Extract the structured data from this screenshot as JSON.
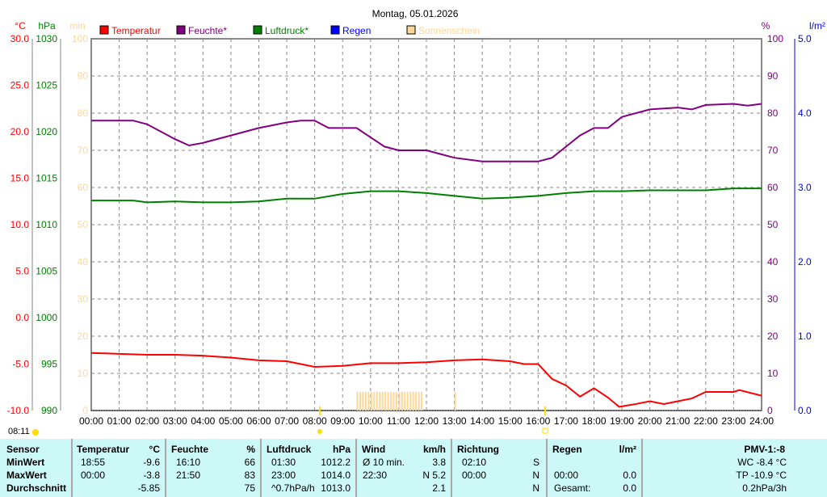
{
  "title": "Montag, 05.01.2026",
  "time_marker": "08:11",
  "chart_data": {
    "type": "line",
    "title": "Montag, 05.01.2026",
    "x_unit": "hours",
    "xticks": [
      "00:00",
      "01:00",
      "02:00",
      "03:00",
      "04:00",
      "05:00",
      "06:00",
      "07:00",
      "08:00",
      "09:00",
      "10:00",
      "11:00",
      "12:00",
      "13:00",
      "14:00",
      "15:00",
      "16:00",
      "17:00",
      "18:00",
      "19:00",
      "20:00",
      "21:00",
      "22:00",
      "23:00",
      "24:00"
    ],
    "axes": {
      "temp": {
        "label": "°C",
        "range": [
          -10,
          30
        ],
        "ticks": [
          "30.0",
          "25.0",
          "20.0",
          "15.0",
          "10.0",
          "5.0",
          "0.0",
          "-5.0",
          "-10.0"
        ],
        "color": "#ff0000"
      },
      "pressure": {
        "label": "hPa",
        "range": [
          990,
          1030
        ],
        "ticks": [
          "1030",
          "1025",
          "1020",
          "1015",
          "1010",
          "1005",
          "1000",
          "995",
          "990"
        ],
        "color": "#008000"
      },
      "sun": {
        "label": "min",
        "range": [
          0,
          100
        ],
        "ticks": [
          "100",
          "90",
          "80",
          "70",
          "60",
          "50",
          "40",
          "30",
          "20",
          "10",
          "0"
        ],
        "color": "#ffd898"
      },
      "humidity": {
        "label": "%",
        "range": [
          0,
          100
        ],
        "ticks": [
          "100",
          "90",
          "80",
          "70",
          "60",
          "50",
          "40",
          "30",
          "20",
          "10",
          "0"
        ],
        "color": "#800080"
      },
      "rain": {
        "label": "l/m²",
        "range": [
          0,
          5
        ],
        "ticks": [
          "5.0",
          "4.0",
          "3.0",
          "2.0",
          "1.0",
          "0.0"
        ],
        "color": "#0000ff"
      }
    },
    "legend": [
      {
        "name": "Temperatur",
        "color": "#ff0000"
      },
      {
        "name": "Feuchte*",
        "color": "#800080"
      },
      {
        "name": "Luftdruck*",
        "color": "#008000"
      },
      {
        "name": "Regen",
        "color": "#0000ff"
      },
      {
        "name": "Sonnenschein",
        "color": "#ffd898"
      }
    ],
    "series": [
      {
        "name": "Temperatur",
        "axis": "temp",
        "color": "#ff0000",
        "x": [
          0,
          1,
          2,
          3,
          4,
          5,
          6,
          7,
          7.5,
          8,
          9,
          10,
          11,
          12,
          13,
          14,
          15,
          15.5,
          16,
          16.5,
          17,
          17.5,
          18,
          18.5,
          18.9,
          19.5,
          20,
          20.5,
          21,
          21.5,
          22,
          23,
          23.2,
          24
        ],
        "y": [
          -3.8,
          -3.9,
          -4.0,
          -4.0,
          -4.1,
          -4.3,
          -4.6,
          -4.7,
          -5.0,
          -5.3,
          -5.2,
          -4.9,
          -4.9,
          -4.8,
          -4.6,
          -4.5,
          -4.7,
          -5.0,
          -5.0,
          -6.6,
          -7.3,
          -8.5,
          -7.6,
          -8.6,
          -9.6,
          -9.3,
          -9.0,
          -9.3,
          -9.0,
          -8.7,
          -8.0,
          -8.0,
          -7.8,
          -8.4
        ]
      },
      {
        "name": "Feuchte*",
        "axis": "humidity",
        "color": "#800080",
        "x": [
          0,
          1.5,
          2,
          2.5,
          3,
          3.5,
          4,
          5,
          6,
          7,
          7.5,
          8,
          8.5,
          9,
          9.5,
          10,
          10.5,
          11,
          12,
          12.5,
          13,
          14,
          15,
          16,
          16.5,
          17,
          17.5,
          18,
          18.5,
          19,
          20,
          21,
          21.5,
          22,
          23,
          23.5,
          24
        ],
        "y": [
          78,
          78,
          77,
          75,
          73,
          71.3,
          72,
          74,
          76,
          77.5,
          78,
          78,
          76,
          76,
          76,
          73.5,
          71,
          70,
          70,
          69,
          68,
          67,
          67,
          67,
          68,
          71,
          74,
          76,
          76,
          79,
          81,
          81.5,
          81,
          82.2,
          82.5,
          82,
          82.5
        ]
      },
      {
        "name": "Luftdruck*",
        "axis": "pressure",
        "color": "#008000",
        "x": [
          0,
          1.5,
          2,
          3,
          4,
          5,
          6,
          7,
          8,
          9,
          10,
          11,
          12,
          13,
          14,
          15,
          16,
          17,
          18,
          19,
          20,
          21,
          22,
          23,
          24
        ],
        "y": [
          1012.6,
          1012.6,
          1012.4,
          1012.5,
          1012.4,
          1012.4,
          1012.5,
          1012.8,
          1012.8,
          1013.3,
          1013.6,
          1013.6,
          1013.4,
          1013.1,
          1012.8,
          1012.9,
          1013.1,
          1013.4,
          1013.6,
          1013.6,
          1013.7,
          1013.7,
          1013.7,
          1013.9,
          1013.9
        ]
      },
      {
        "name": "Sonnenschein",
        "axis": "sun",
        "color": "#ffd898",
        "type": "bar",
        "x": [
          9.5,
          9.6,
          9.7,
          9.8,
          9.9,
          10.0,
          10.1,
          10.2,
          10.3,
          10.4,
          10.5,
          10.6,
          10.7,
          10.8,
          10.9,
          11.0,
          11.1,
          11.2,
          11.3,
          11.4,
          11.5,
          11.6,
          11.7,
          11.8,
          13.0
        ],
        "y": [
          5,
          5,
          5,
          5,
          5,
          5,
          5,
          5,
          5,
          5,
          5,
          5,
          5,
          5,
          5,
          5,
          5,
          5,
          5,
          5,
          5,
          5,
          5,
          5,
          5
        ]
      }
    ],
    "markers": [
      {
        "name": "sunrise",
        "x": 8.18
      },
      {
        "name": "sunset",
        "x": 16.25
      }
    ]
  },
  "table": {
    "headers": [
      "Sensor",
      "Temperatur",
      "°C",
      "Feuchte",
      "%",
      "Luftdruck",
      "hPa",
      "Wind",
      "km/h",
      "Richtung",
      "Regen",
      "l/m²",
      "PMV-1:-8"
    ],
    "rows": [
      {
        "label": "MinWert",
        "t_time": "18:55",
        "t_val": "-9.6",
        "h_time": "16:10",
        "h_val": "66",
        "p_time": "01:30",
        "p_val": "1012.2",
        "w_label": "Ø 10 min.",
        "w_val": "3.8",
        "d_time": "02:10",
        "d_val": "S",
        "r_time": "",
        "r_val": "",
        "extra": "WC -8.4 °C"
      },
      {
        "label": "MaxWert",
        "t_time": "00:00",
        "t_val": "-3.8",
        "h_time": "21:50",
        "h_val": "83",
        "p_time": "23:00",
        "p_val": "1014.0",
        "w_label": "22:30",
        "w_val": "N 5.2",
        "d_time": "00:00",
        "d_val": "N",
        "r_time": "00:00",
        "r_val": "0.0",
        "extra": "TP -10.9 °C"
      },
      {
        "label": "Durchschnitt",
        "t_time": "",
        "t_val": "-5.85",
        "h_time": "",
        "h_val": "75",
        "p_time": "^0.7hPa/h",
        "p_val": "1013.0",
        "w_label": "",
        "w_val": "2.1",
        "d_time": "",
        "d_val": "N",
        "r_time": "Gesamt:",
        "r_val": "0.0",
        "extra": "0.2hPa/3h"
      }
    ]
  }
}
